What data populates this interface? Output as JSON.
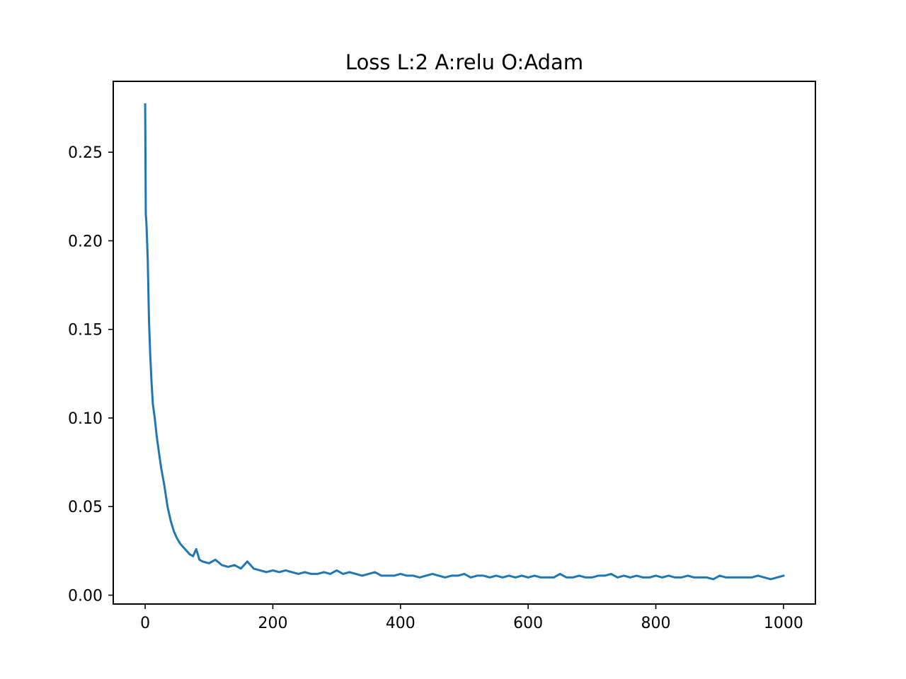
{
  "chart_data": {
    "type": "line",
    "title": "Loss L:2 A:relu O:Adam",
    "xlabel": "",
    "ylabel": "",
    "xlim": [
      -50,
      1050
    ],
    "ylim": [
      -0.005,
      0.29
    ],
    "xticks": [
      0,
      200,
      400,
      600,
      800,
      1000
    ],
    "xtick_labels": [
      "0",
      "200",
      "400",
      "600",
      "800",
      "1000"
    ],
    "yticks": [
      0.0,
      0.05,
      0.1,
      0.15,
      0.2,
      0.25
    ],
    "ytick_labels": [
      "0.00",
      "0.05",
      "0.10",
      "0.15",
      "0.20",
      "0.25"
    ],
    "grid": false,
    "legend": "none",
    "series": [
      {
        "color": "#1f77b4",
        "x": [
          0,
          1,
          2,
          4,
          6,
          8,
          10,
          12,
          15,
          18,
          21,
          25,
          30,
          35,
          40,
          45,
          50,
          55,
          60,
          65,
          70,
          75,
          80,
          85,
          90,
          100,
          110,
          120,
          130,
          140,
          150,
          160,
          170,
          180,
          190,
          200,
          210,
          220,
          230,
          240,
          250,
          260,
          270,
          280,
          290,
          300,
          310,
          320,
          330,
          340,
          350,
          360,
          370,
          380,
          390,
          400,
          410,
          420,
          430,
          440,
          450,
          460,
          470,
          480,
          490,
          500,
          510,
          520,
          530,
          540,
          550,
          560,
          570,
          580,
          590,
          600,
          610,
          620,
          630,
          640,
          650,
          660,
          670,
          680,
          690,
          700,
          710,
          720,
          730,
          740,
          750,
          760,
          770,
          780,
          790,
          800,
          810,
          820,
          830,
          840,
          850,
          860,
          870,
          880,
          890,
          900,
          910,
          920,
          930,
          940,
          950,
          960,
          970,
          980,
          990,
          1000
        ],
        "values": [
          0.277,
          0.215,
          0.21,
          0.19,
          0.155,
          0.135,
          0.12,
          0.108,
          0.1,
          0.09,
          0.082,
          0.072,
          0.062,
          0.05,
          0.042,
          0.036,
          0.032,
          0.029,
          0.027,
          0.025,
          0.023,
          0.022,
          0.026,
          0.02,
          0.019,
          0.018,
          0.02,
          0.017,
          0.016,
          0.017,
          0.015,
          0.019,
          0.015,
          0.014,
          0.013,
          0.014,
          0.013,
          0.014,
          0.013,
          0.012,
          0.013,
          0.012,
          0.012,
          0.013,
          0.012,
          0.014,
          0.012,
          0.013,
          0.012,
          0.011,
          0.012,
          0.013,
          0.011,
          0.011,
          0.011,
          0.012,
          0.011,
          0.011,
          0.01,
          0.011,
          0.012,
          0.011,
          0.01,
          0.011,
          0.011,
          0.012,
          0.01,
          0.011,
          0.011,
          0.01,
          0.011,
          0.01,
          0.011,
          0.01,
          0.011,
          0.01,
          0.011,
          0.01,
          0.01,
          0.01,
          0.012,
          0.01,
          0.01,
          0.011,
          0.01,
          0.01,
          0.011,
          0.011,
          0.012,
          0.01,
          0.011,
          0.01,
          0.011,
          0.01,
          0.01,
          0.011,
          0.01,
          0.011,
          0.01,
          0.01,
          0.011,
          0.01,
          0.01,
          0.01,
          0.009,
          0.011,
          0.01,
          0.01,
          0.01,
          0.01,
          0.01,
          0.011,
          0.01,
          0.009,
          0.01,
          0.011
        ]
      }
    ]
  }
}
